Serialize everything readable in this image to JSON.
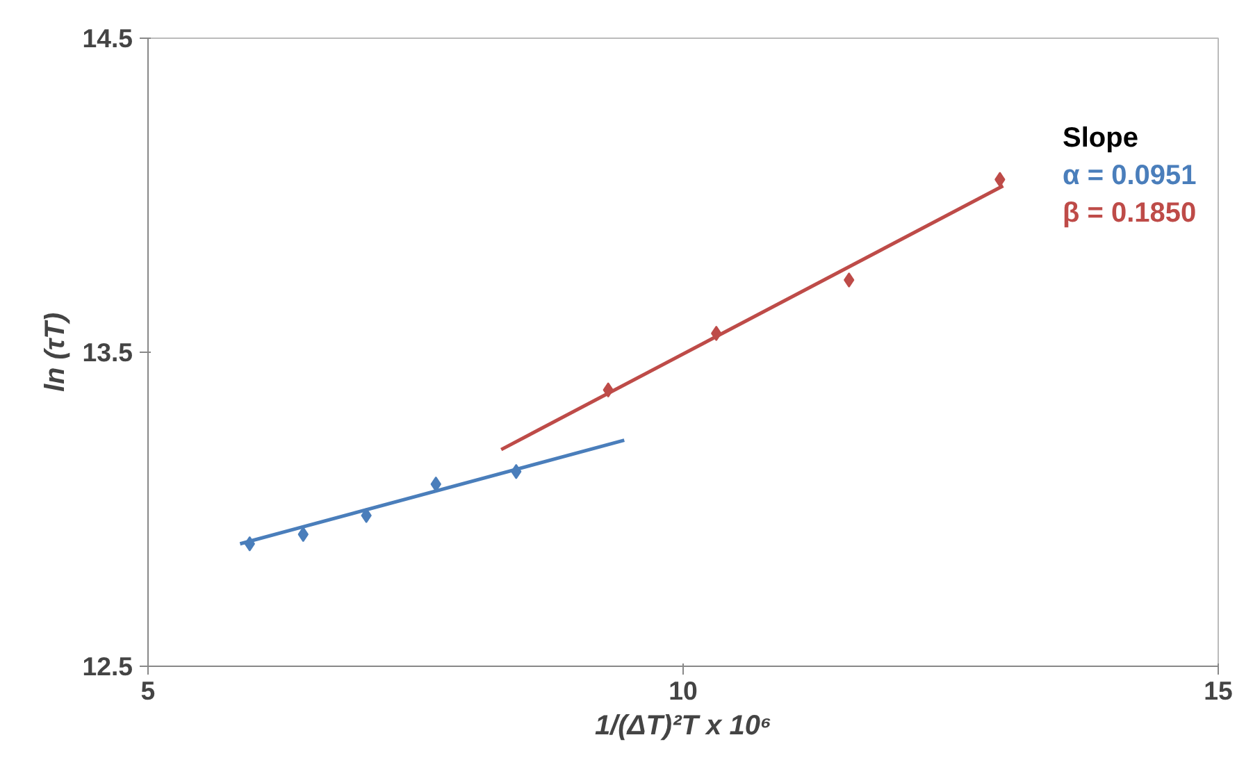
{
  "chart_data": {
    "type": "scatter",
    "xlabel": "1/(ΔT)²T x 10⁶",
    "ylabel": "ln (τT)",
    "series": [
      {
        "color": "#4a7ebb",
        "marker": "diamond",
        "x": [
          5.95,
          6.45,
          7.04,
          7.69,
          8.44
        ],
        "values": [
          12.89,
          12.92,
          12.98,
          13.08,
          13.12
        ]
      },
      {
        "color": "#4a7ebb",
        "type": "line",
        "marker": "none",
        "line_style": "solid",
        "x": [
          5.86,
          9.45
        ],
        "values": [
          12.89,
          13.22
        ]
      },
      {
        "color": "#be4b48",
        "marker": "diamond",
        "x": [
          9.3,
          10.31,
          11.55,
          12.96
        ],
        "values": [
          13.38,
          13.56,
          13.73,
          14.05
        ]
      },
      {
        "color": "#be4b48",
        "type": "line",
        "marker": "none",
        "line_style": "solid",
        "x": [
          8.3,
          12.99
        ],
        "values": [
          13.19,
          14.03
        ]
      }
    ],
    "xlim": [
      5,
      15
    ],
    "ylim": [
      12.5,
      14.5
    ],
    "xticks": [
      5,
      10,
      15
    ],
    "yticks": [
      12.5,
      13.5,
      14.5
    ],
    "grid": false,
    "annotations": [
      "Slope",
      "α = 0.0951",
      "β = 0.1850"
    ]
  }
}
